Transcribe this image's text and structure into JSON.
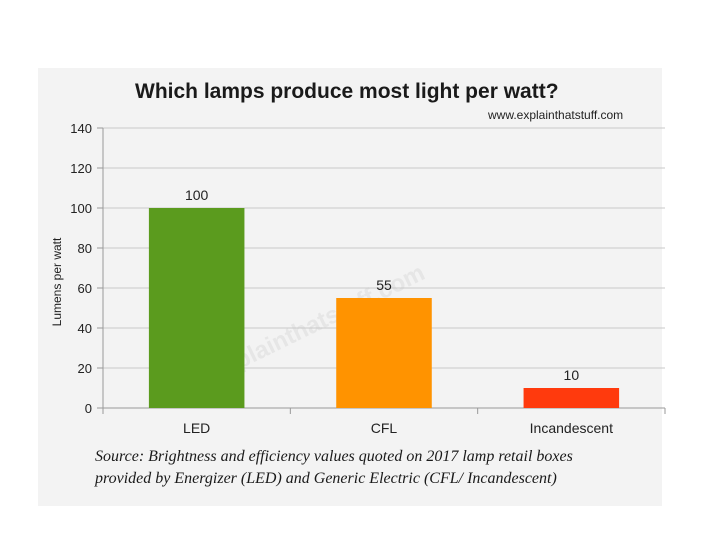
{
  "chart_data": {
    "type": "bar",
    "title": "Which lamps produce most light per watt?",
    "credit": "www.explainthatstuff.com",
    "watermark": "www.explainthatstuff.com",
    "xlabel": "",
    "ylabel": "Lumens per watt",
    "categories": [
      "LED",
      "CFL",
      "Incandescent"
    ],
    "values": [
      100,
      55,
      10
    ],
    "data_labels": [
      "100",
      "55",
      "10"
    ],
    "bar_colors": [
      "#5b9b1e",
      "#ff9300",
      "#ff3a0d"
    ],
    "ylim": [
      0,
      140
    ],
    "yticks": [
      0,
      20,
      40,
      60,
      80,
      100,
      120,
      140
    ],
    "grid": true,
    "legend": "none"
  },
  "source": {
    "line1": "Source: Brightness and efficiency values quoted on 2017 lamp retail boxes",
    "line2": "provided by Energizer (LED) and Generic Electric (CFL/ Incandescent)"
  }
}
